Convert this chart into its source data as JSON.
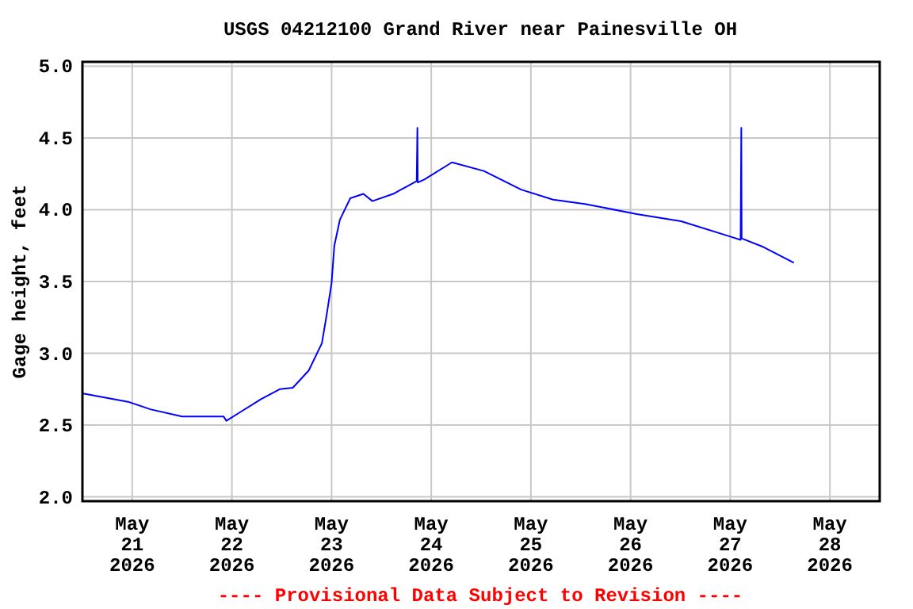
{
  "chart_data": {
    "type": "line",
    "title": "USGS 04212100 Grand River near Painesville OH",
    "ylabel": "Gage height, feet",
    "annotations": [
      "---- Provisional Data Subject to Revision ----"
    ],
    "series": [
      {
        "color": "#0000ff",
        "x": [
          "2026-05-20T12:10",
          "2026-05-20T23:15",
          "2026-05-21T04:20",
          "2026-05-21T12:00",
          "2026-05-21T22:00",
          "2026-05-21T22:40",
          "2026-05-22T02:00",
          "2026-05-22T07:00",
          "2026-05-22T11:30",
          "2026-05-22T14:40",
          "2026-05-22T18:30",
          "2026-05-22T21:40",
          "2026-05-22T22:50",
          "2026-05-23T00:00",
          "2026-05-23T00:40",
          "2026-05-23T02:00",
          "2026-05-23T04:30",
          "2026-05-23T07:40",
          "2026-05-23T09:50",
          "2026-05-23T14:50",
          "2026-05-23T20:30",
          "2026-05-23T20:35",
          "2026-05-23T20:40",
          "2026-05-23T20:45",
          "2026-05-23T22:20",
          "2026-05-24T05:00",
          "2026-05-24T12:40",
          "2026-05-24T21:40",
          "2026-05-25T05:20",
          "2026-05-25T13:00",
          "2026-05-26T01:30",
          "2026-05-26T12:10",
          "2026-05-27T00:20",
          "2026-05-27T02:30",
          "2026-05-27T02:35",
          "2026-05-27T02:40",
          "2026-05-27T02:45",
          "2026-05-27T08:00",
          "2026-05-27T15:20"
        ],
        "values": [
          2.72,
          2.66,
          2.61,
          2.56,
          2.56,
          2.53,
          2.59,
          2.68,
          2.75,
          2.76,
          2.88,
          3.07,
          3.27,
          3.49,
          3.75,
          3.93,
          4.08,
          4.11,
          4.06,
          4.11,
          4.2,
          4.38,
          4.57,
          4.19,
          4.21,
          4.33,
          4.27,
          4.14,
          4.07,
          4.04,
          3.97,
          3.92,
          3.81,
          3.79,
          4.17,
          4.57,
          3.8,
          3.74,
          3.63
        ]
      }
    ],
    "xlim": [
      "2026-05-20T12:00",
      "2026-05-28T12:00"
    ],
    "xticks": [
      {
        "value": "2026-05-21",
        "label": "May\n21\n2026"
      },
      {
        "value": "2026-05-22",
        "label": "May\n22\n2026"
      },
      {
        "value": "2026-05-23",
        "label": "May\n23\n2026"
      },
      {
        "value": "2026-05-24",
        "label": "May\n24\n2026"
      },
      {
        "value": "2026-05-25",
        "label": "May\n25\n2026"
      },
      {
        "value": "2026-05-26",
        "label": "May\n26\n2026"
      },
      {
        "value": "2026-05-27",
        "label": "May\n27\n2026"
      },
      {
        "value": "2026-05-28",
        "label": "May\n28\n2026"
      }
    ],
    "ylim": [
      1.97,
      5.03
    ],
    "yticks": [
      {
        "value": 2,
        "label": "2.0"
      },
      2.5,
      {
        "value": 3,
        "label": "3.0"
      },
      3.5,
      {
        "value": 4,
        "label": "4.0"
      },
      4.5,
      {
        "value": 5,
        "label": "5.0"
      }
    ],
    "grid": true,
    "marker": "none",
    "line_style": "solid"
  }
}
